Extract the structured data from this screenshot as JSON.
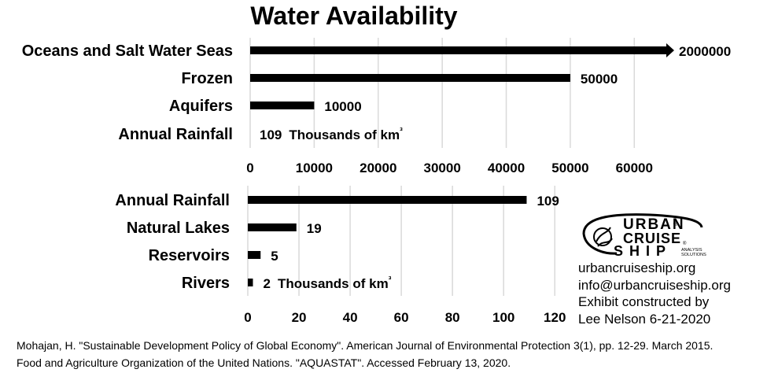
{
  "title": "Water Availability",
  "chart_data": [
    {
      "type": "bar",
      "orientation": "horizontal",
      "categories": [
        "Oceans and Salt Water Seas",
        "Frozen",
        "Aquifers",
        "Annual Rainfall"
      ],
      "values": [
        2000000,
        50000,
        10000,
        109
      ],
      "data_labels": [
        "2000000",
        "50000",
        "10000",
        "109"
      ],
      "unit_label": "Thousands of km³",
      "xlim": [
        0,
        65000
      ],
      "x_ticks": [
        0,
        10000,
        20000,
        30000,
        40000,
        50000,
        60000
      ],
      "truncated_arrow": "Oceans and Salt Water Seas",
      "grid": true,
      "color": "#000000",
      "grid_color": "#d9d9d9"
    },
    {
      "type": "bar",
      "orientation": "horizontal",
      "categories": [
        "Annual Rainfall",
        "Natural Lakes",
        "Reservoirs",
        "Rivers"
      ],
      "values": [
        109,
        19,
        5,
        2
      ],
      "data_labels": [
        "109",
        "19",
        "5",
        "2"
      ],
      "unit_label": "Thousands of km³",
      "xlim": [
        0,
        127
      ],
      "x_ticks": [
        0,
        20,
        40,
        60,
        80,
        100,
        120
      ],
      "grid": true,
      "color": "#000000",
      "grid_color": "#d9d9d9"
    }
  ],
  "logo": {
    "line1": "URBAN",
    "line2": "CRUISE",
    "line3": "SHIP",
    "tagline_1": "ANALYSIS",
    "tagline_2": "SOLUTIONS",
    "registered": "®"
  },
  "contact": {
    "website": "urbancruiseship.org",
    "email": "info@urbancruiseship.org",
    "credit_1": "Exhibit constructed by",
    "credit_2": "Lee Nelson 6-21-2020"
  },
  "sources": [
    "Mohajan, H. \"Sustainable Development Policy of Global Economy\". American Journal of Environmental Protection 3(1), pp. 12-29. March 2015.",
    "Food and Agriculture Organization of the United Nations. \"AQUASTAT\". Accessed February 13, 2020."
  ]
}
